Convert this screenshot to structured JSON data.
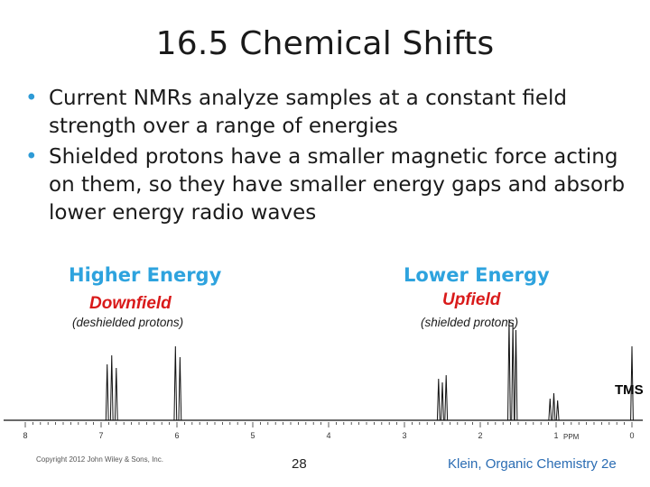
{
  "slide": {
    "title": "16.5 Chemical Shifts",
    "bullets": [
      "Current NMRs analyze samples at a constant field strength over a range of energies",
      "Shielded protons have a smaller magnetic force acting on them, so they have smaller energy gaps and absorb lower energy radio waves"
    ]
  },
  "figure": {
    "left_energy": "Higher Energy",
    "left_field": "Downfield",
    "left_note": "(deshielded protons)",
    "right_energy": "Lower Energy",
    "right_field": "Upfield",
    "right_note": "(shielded protons)",
    "tms_label": "TMS",
    "axis_unit": "PPM",
    "axis_ticks": [
      "8",
      "7",
      "6",
      "5",
      "4",
      "3",
      "2",
      "1",
      "0"
    ],
    "colors": {
      "energy": "#2ea3de",
      "field": "#d91a1a",
      "bullet": "#2e9bd6"
    }
  },
  "footer": {
    "copyright": "Copyright 2012 John Wiley & Sons, Inc.",
    "page_number": "28",
    "credit": "Klein, Organic Chemistry 2e"
  }
}
